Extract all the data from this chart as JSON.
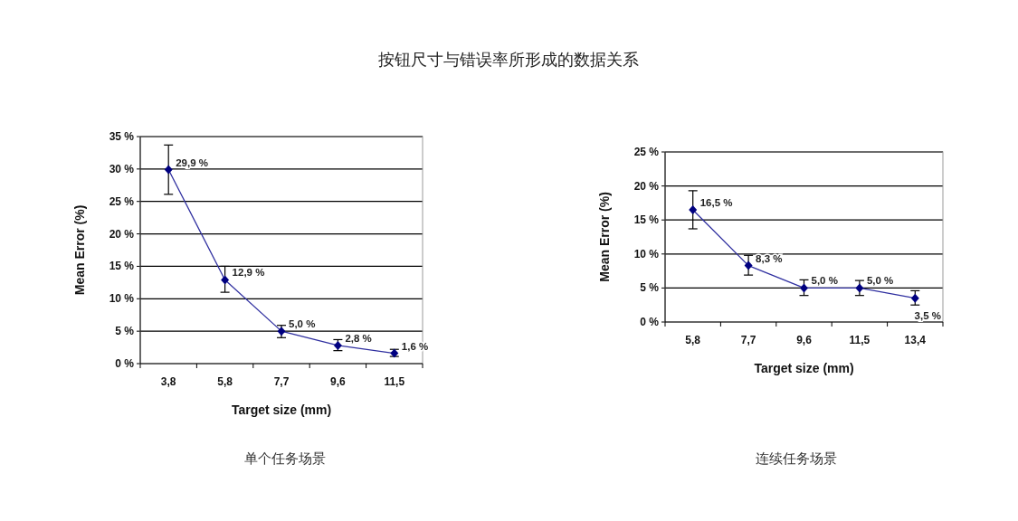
{
  "chart_data": [
    {
      "type": "line",
      "title": "按钮尺寸与错误率所形成的数据关系",
      "xlabel": "Target size (mm)",
      "ylabel": "Mean Error (%)",
      "categories": [
        "3,8",
        "5,8",
        "7,7",
        "9,6",
        "11,5"
      ],
      "series": [
        {
          "color": "#000080",
          "values": [
            29.9,
            12.9,
            5.0,
            2.8,
            1.6
          ],
          "errors": [
            [
              26.1,
              33.7
            ],
            [
              11.0,
              15.0
            ],
            [
              4.0,
              5.9
            ],
            [
              2.0,
              3.7
            ],
            [
              1.1,
              2.2
            ]
          ],
          "value_labels": [
            "29,9 %",
            "12,9 %",
            "5,0 %",
            "2,8 %",
            "1,6 %"
          ]
        }
      ],
      "ylim": [
        0,
        35
      ],
      "yticks": [
        {
          "value": 0,
          "label": "0 %"
        },
        {
          "value": 5,
          "label": "5 %"
        },
        {
          "value": 10,
          "label": "10 %"
        },
        {
          "value": 15,
          "label": "15 %"
        },
        {
          "value": 20,
          "label": "20 %"
        },
        {
          "value": 25,
          "label": "25 %"
        },
        {
          "value": 30,
          "label": "30 %"
        },
        {
          "value": 35,
          "label": "35 %"
        }
      ],
      "grid": "y",
      "marker": "diamond",
      "line_style": "solid",
      "annotations": [
        "单个任务场景"
      ]
    },
    {
      "type": "line",
      "xlabel": "Target size (mm)",
      "ylabel": "Mean Error (%)",
      "categories": [
        "5,8",
        "7,7",
        "9,6",
        "11,5",
        "13,4"
      ],
      "series": [
        {
          "color": "#000080",
          "values": [
            16.5,
            8.3,
            5.0,
            5.0,
            3.5
          ],
          "errors": [
            [
              13.7,
              19.3
            ],
            [
              6.9,
              9.8
            ],
            [
              3.9,
              6.2
            ],
            [
              3.9,
              6.1
            ],
            [
              2.5,
              4.6
            ]
          ],
          "value_labels": [
            "16,5 %",
            "8,3 %",
            "5,0 %",
            "5,0 %",
            "3,5 %"
          ]
        }
      ],
      "ylim": [
        0,
        25
      ],
      "yticks": [
        {
          "value": 0,
          "label": "0 %"
        },
        {
          "value": 5,
          "label": "5 %"
        },
        {
          "value": 10,
          "label": "10 %"
        },
        {
          "value": 15,
          "label": "15 %"
        },
        {
          "value": 20,
          "label": "20 %"
        },
        {
          "value": 25,
          "label": "25 %"
        }
      ],
      "grid": "y",
      "marker": "diamond",
      "line_style": "solid",
      "annotations": [
        "连续任务场景"
      ]
    }
  ]
}
